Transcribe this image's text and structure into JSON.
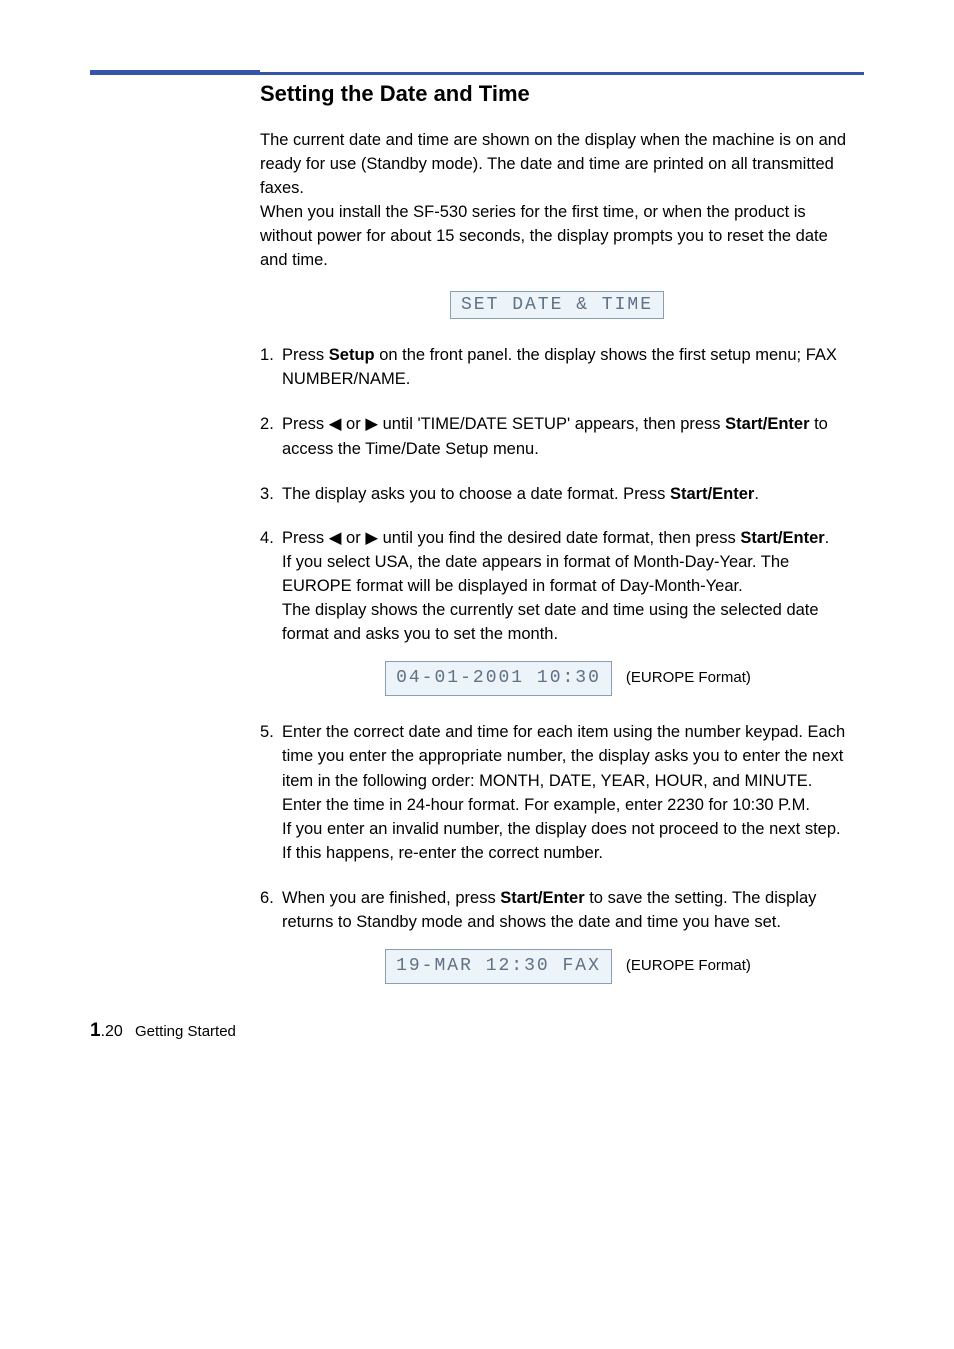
{
  "colors": {
    "rule": "#3556a7",
    "lcd_bg": "#ecf3f9",
    "lcd_border": "#8aa0b2",
    "lcd_text": "#5f7184"
  },
  "title": "Setting the Date and Time",
  "intro1": "The current date and time are shown on the display when the machine is on and ready for use (Standby mode). The date and time are printed on all transmitted faxes.",
  "intro2": "When you install the SF-530 series for the first time, or when the product is without power for about 15 seconds, the display prompts you to reset the date and time.",
  "lcd1": "SET DATE & TIME",
  "steps": {
    "s1a": "Press ",
    "s1b": "Setup",
    "s1c": " on the front panel. the display shows the first setup menu; FAX NUMBER/NAME.",
    "s2a": "Press ",
    "s2b": " or ",
    "s2c": " until 'TIME/DATE SETUP' appears, then press ",
    "s2d": "Start/Enter",
    "s2e": " to access the Time/Date Setup menu.",
    "s3a": "The display asks you to choose a date format. Press ",
    "s3b": "Start/Enter",
    "s3c": ".",
    "s4a": "Press ",
    "s4b": " or ",
    "s4c": " until you find the desired date format, then press ",
    "s4d": "Start/Enter",
    "s4e": ".",
    "s4sub1": "If you select USA, the date appears in format of Month-Day-Year. The EUROPE format will be displayed in format of Day-Month-Year.",
    "s4sub2": "The display shows the currently set date and time using the selected date format and asks you to set the month.",
    "s5a": "Enter the correct date and time for each item using the number keypad. Each time you enter the appropriate number, the display asks you to enter the next item in the following order: MONTH, DATE, YEAR, HOUR, and MINUTE.",
    "s5sub1": "Enter the time in 24-hour format. For example, enter 2230 for 10:30 P.M.",
    "s5sub2": "If you enter an invalid number, the display does not proceed to the next step. If this happens, re-enter the correct number.",
    "s6a": "When you are finished, press ",
    "s6b": "Start/Enter",
    "s6c": " to save the setting. The display returns to Standby mode and shows the date and time you have set."
  },
  "lcd2": "04-01-2001 10:30",
  "lcd2_annot": "(EUROPE Format)",
  "lcd3": "19-MAR 12:30 FAX",
  "lcd3_annot": "(EUROPE Format)",
  "arrows": {
    "left": "◀",
    "right": "▶"
  },
  "footer": {
    "page_major": "1",
    "page_minor": ".20",
    "chapter": "Getting Started"
  }
}
